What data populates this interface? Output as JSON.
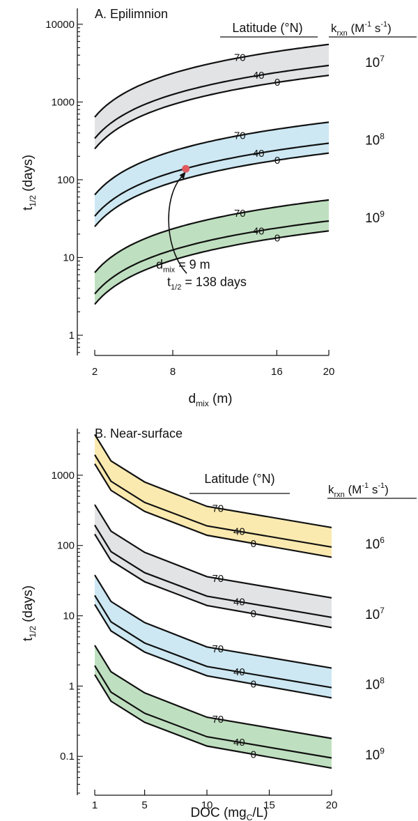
{
  "chart_data": [
    {
      "id": "A",
      "type": "line",
      "title": "A. Epilimnion",
      "xlabel": {
        "main": "d",
        "sub": "mix",
        "rest": " (m)"
      },
      "ylabel": {
        "main": "t",
        "sub": "1/2",
        "rest": " (days)"
      },
      "x": [
        2,
        20
      ],
      "xlim": [
        2,
        20
      ],
      "xticks": [
        {
          "value": 2,
          "label": "2"
        },
        {
          "value": 8,
          "label": "8"
        },
        {
          "value": 16,
          "label": "16"
        },
        {
          "value": 20,
          "label": "20"
        }
      ],
      "yscale": "log",
      "ylim": [
        0.55,
        16000
      ],
      "yticks": [
        1,
        10,
        100,
        1000,
        10000
      ],
      "yticklabels": [
        "1",
        "10",
        "100",
        "1000",
        "10000"
      ],
      "latitude_header": "Latitude (°N)",
      "krxn_header": {
        "main": "k",
        "sub": "rxn",
        "rest": " (M",
        "sup1": "-1",
        "mid": " s",
        "sup2": "-1",
        "end": ")"
      },
      "groups": [
        {
          "krxn": {
            "base": "10",
            "exp": "7"
          },
          "color": "#e2e3e5",
          "series": [
            {
              "name": "70",
              "values": [
                640,
                5500
              ]
            },
            {
              "name": "40",
              "values": [
                340,
                2950
              ]
            },
            {
              "name": "0",
              "values": [
                250,
                2200
              ]
            }
          ]
        },
        {
          "krxn": {
            "base": "10",
            "exp": "8"
          },
          "color": "#cde8f3",
          "series": [
            {
              "name": "70",
              "values": [
                64,
                550
              ]
            },
            {
              "name": "40",
              "values": [
                34,
                295
              ]
            },
            {
              "name": "0",
              "values": [
                25,
                220
              ]
            }
          ]
        },
        {
          "krxn": {
            "base": "10",
            "exp": "9"
          },
          "color": "#bfe0c0",
          "series": [
            {
              "name": "70",
              "values": [
                6.4,
                55
              ]
            },
            {
              "name": "40",
              "values": [
                3.4,
                29.5
              ]
            },
            {
              "name": "0",
              "values": [
                2.5,
                22
              ]
            }
          ]
        }
      ],
      "highlight": {
        "x": 9,
        "y": 138,
        "color": "#e05a5f",
        "label_line1": {
          "main": "d",
          "sub": "mix",
          "rest": " = 9 m"
        },
        "label_line2": {
          "main": "t",
          "sub": "1/2",
          "rest": " = 138 days"
        }
      }
    },
    {
      "id": "B",
      "type": "line",
      "title": "B. Near-surface",
      "xlabel": {
        "main": "DOC (mg",
        "sub": "C",
        "rest": "/L)"
      },
      "ylabel": {
        "main": "t",
        "sub": "1/2",
        "rest": " (days)"
      },
      "x": [
        1,
        2.3,
        5,
        10,
        20
      ],
      "xlim": [
        1,
        20
      ],
      "xticks": [
        {
          "value": 1,
          "label": "1"
        },
        {
          "value": 5,
          "label": "5"
        },
        {
          "value": 10,
          "label": "10"
        },
        {
          "value": 15,
          "label": "15"
        },
        {
          "value": 20,
          "label": "20"
        }
      ],
      "yscale": "log",
      "ylim": [
        0.028,
        4600
      ],
      "yticks": [
        0.1,
        1,
        10,
        100,
        1000
      ],
      "yticklabels": [
        "0.1",
        "1",
        "10",
        "100",
        "1000"
      ],
      "latitude_header": "Latitude (°N)",
      "krxn_header": {
        "main": "k",
        "sub": "rxn",
        "rest": " (M",
        "sup1": "-1",
        "mid": " s",
        "sup2": "-1",
        "end": ")"
      },
      "groups": [
        {
          "krxn": {
            "base": "10",
            "exp": "6"
          },
          "color": "#fbeab0",
          "series": [
            {
              "name": "70",
              "values": [
                3800,
                1600,
                800,
                360,
                180
              ]
            },
            {
              "name": "40",
              "values": [
                1950,
                820,
                410,
                190,
                95
              ]
            },
            {
              "name": "0",
              "values": [
                1450,
                610,
                305,
                140,
                68
              ]
            }
          ]
        },
        {
          "krxn": {
            "base": "10",
            "exp": "7"
          },
          "color": "#e2e3e5",
          "series": [
            {
              "name": "70",
              "values": [
                380,
                160,
                80,
                36,
                18
              ]
            },
            {
              "name": "40",
              "values": [
                195,
                82,
                41,
                19,
                9.5
              ]
            },
            {
              "name": "0",
              "values": [
                145,
                61,
                30.5,
                14,
                6.8
              ]
            }
          ]
        },
        {
          "krxn": {
            "base": "10",
            "exp": "8"
          },
          "color": "#cde8f3",
          "series": [
            {
              "name": "70",
              "values": [
                38,
                16,
                8,
                3.6,
                1.8
              ]
            },
            {
              "name": "40",
              "values": [
                19.5,
                8.2,
                4.1,
                1.9,
                0.95
              ]
            },
            {
              "name": "0",
              "values": [
                14.5,
                6.1,
                3.05,
                1.4,
                0.68
              ]
            }
          ]
        },
        {
          "krxn": {
            "base": "10",
            "exp": "9"
          },
          "color": "#bfe0c0",
          "series": [
            {
              "name": "70",
              "values": [
                3.8,
                1.6,
                0.8,
                0.36,
                0.18
              ]
            },
            {
              "name": "40",
              "values": [
                1.95,
                0.82,
                0.41,
                0.19,
                0.095
              ]
            },
            {
              "name": "0",
              "values": [
                1.45,
                0.61,
                0.305,
                0.14,
                0.068
              ]
            }
          ]
        }
      ]
    }
  ]
}
